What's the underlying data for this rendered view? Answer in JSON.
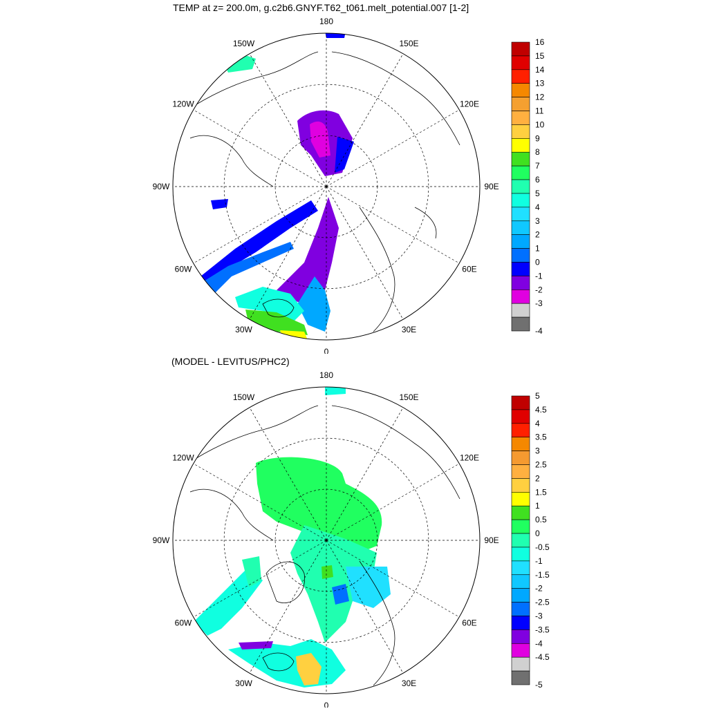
{
  "titles": {
    "top": "TEMP at z= 200.0m, g.c2b6.GNYF.T62_t061.melt_potential.007 [1-2]",
    "bottom": "(MODEL - LEVITUS/PHC2)"
  },
  "longitude_labels": [
    "180",
    "150E",
    "120E",
    "90E",
    "60E",
    "30E",
    "0",
    "30W",
    "60W",
    "90W",
    "120W",
    "150W"
  ],
  "colorbar_top": {
    "labels": [
      "16",
      "15",
      "14",
      "13",
      "12",
      "11",
      "10",
      "9",
      "8",
      "7",
      "6",
      "5",
      "4",
      "3",
      "2",
      "1",
      "0",
      "-1",
      "-2",
      "-3",
      "-4"
    ],
    "colors": [
      "#c00000",
      "#e00000",
      "#ff2000",
      "#f58800",
      "#f5a030",
      "#ffb040",
      "#ffd040",
      "#ffff00",
      "#40e020",
      "#20ff60",
      "#20ffb0",
      "#10ffe0",
      "#20e0ff",
      "#10c8ff",
      "#00a8ff",
      "#0070ff",
      "#0000ff",
      "#8000e0",
      "#e000e0",
      "#d0d0d0",
      "#707070"
    ]
  },
  "colorbar_bottom": {
    "labels": [
      "5",
      "4.5",
      "4",
      "3.5",
      "3",
      "2.5",
      "2",
      "1.5",
      "1",
      "0.5",
      "0",
      "-0.5",
      "-1",
      "-1.5",
      "-2",
      "-2.5",
      "-3",
      "-3.5",
      "-4",
      "-4.5",
      "-5"
    ],
    "colors": [
      "#c00000",
      "#e00000",
      "#ff2000",
      "#f58800",
      "#f59a30",
      "#ffb040",
      "#ffd040",
      "#ffff00",
      "#40e020",
      "#20ff60",
      "#20ffb0",
      "#10ffe0",
      "#20e0ff",
      "#10c8ff",
      "#00a8ff",
      "#0070ff",
      "#0000ff",
      "#8000e0",
      "#e000e0",
      "#d0d0d0",
      "#707070"
    ]
  }
}
